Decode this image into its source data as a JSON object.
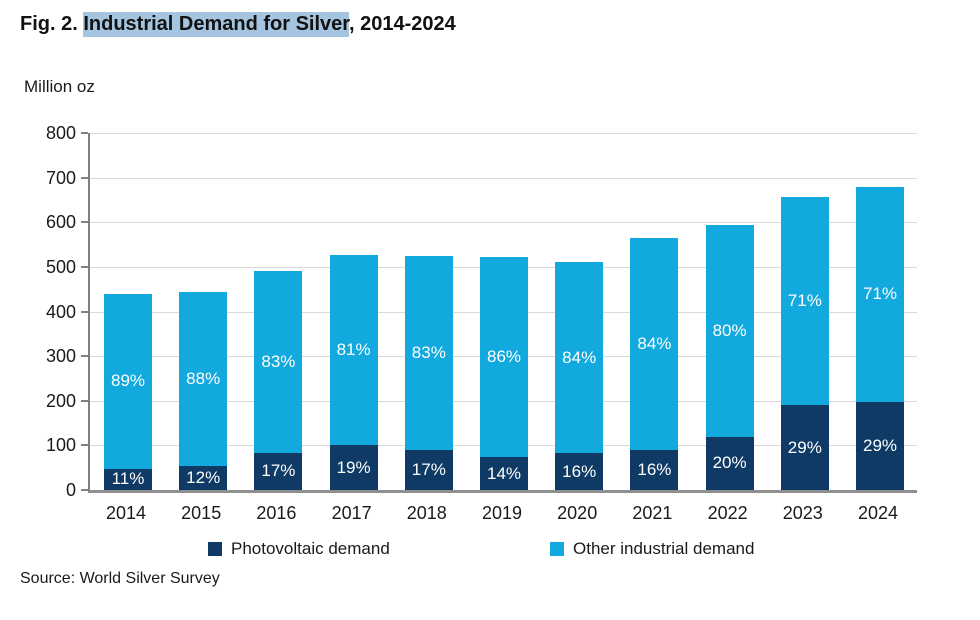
{
  "title": {
    "prefix": "Fig. 2. ",
    "highlight": "Industrial Demand for Silver",
    "suffix": ", 2014-2024"
  },
  "y_axis_unit": "Million oz",
  "source": "Source: World Silver Survey",
  "colors": {
    "photovoltaic": "#0f3a66",
    "other_industrial": "#11a9de",
    "title_highlight": "#a5c4df",
    "gridline": "#d9d9d9",
    "axis": "#8f8f8f",
    "bar_label_text": "#ffffff"
  },
  "legend": {
    "items": [
      {
        "label": "Photovoltaic demand",
        "color": "#0f3a66"
      },
      {
        "label": "Other industrial demand",
        "color": "#11a9de"
      }
    ]
  },
  "chart_data": {
    "type": "bar",
    "stacked": true,
    "title": "Industrial Demand for Silver, 2014-2024",
    "ylabel": "Million oz",
    "xlabel": "",
    "ylim": [
      0,
      800
    ],
    "y_ticks": [
      0,
      100,
      200,
      300,
      400,
      500,
      600,
      700,
      800
    ],
    "grid": true,
    "legend_position": "bottom",
    "categories": [
      "2014",
      "2015",
      "2016",
      "2017",
      "2018",
      "2019",
      "2020",
      "2021",
      "2022",
      "2023",
      "2024"
    ],
    "series": [
      {
        "name": "Photovoltaic demand",
        "color": "#0f3a66",
        "values": [
          48,
          53,
          83,
          100,
          89,
          73,
          82,
          90,
          119,
          190,
          197
        ],
        "labels": [
          "11%",
          "12%",
          "17%",
          "19%",
          "17%",
          "14%",
          "16%",
          "16%",
          "20%",
          "29%",
          "29%"
        ]
      },
      {
        "name": "Other industrial demand",
        "color": "#11a9de",
        "values": [
          392,
          390,
          407,
          427,
          436,
          450,
          429,
          474,
          474,
          467,
          483
        ],
        "labels": [
          "89%",
          "88%",
          "83%",
          "81%",
          "83%",
          "86%",
          "84%",
          "84%",
          "80%",
          "71%",
          "71%"
        ]
      }
    ],
    "totals": [
      440,
      443,
      490,
      527,
      525,
      523,
      511,
      564,
      593,
      657,
      680
    ]
  }
}
